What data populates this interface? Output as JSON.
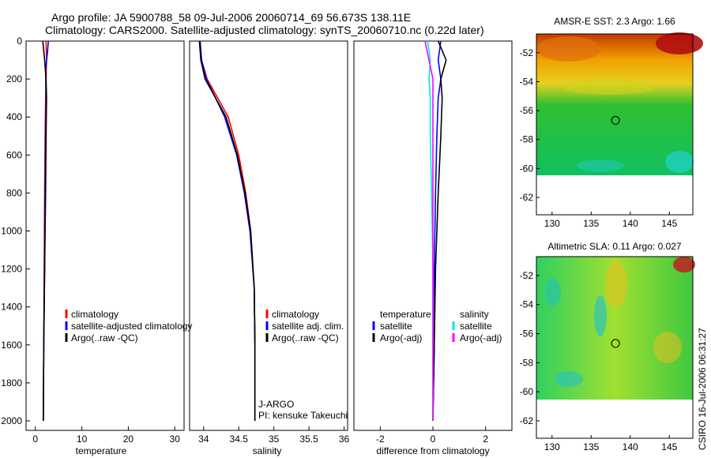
{
  "header": {
    "line1": "Argo profile: JA 5900788_58 09-Jul-2006 20060714_69 56.673S 138.11E",
    "line2": "Climatology: CARS2000. Satellite-adjusted climatology: synTS_20060710.nc (0.22d later)"
  },
  "colors": {
    "climatology": "#ff0000",
    "satellite": "#0000ff",
    "argo": "#000000",
    "argo_adj_sal": "#ff00ff",
    "sat_sal": "#00e5e5"
  },
  "chart_data": [
    {
      "type": "line",
      "id": "temperature",
      "xlabel": "temperature",
      "ylabel": "",
      "xlim": [
        -2,
        32
      ],
      "ylim": [
        2050,
        0
      ],
      "xticks": [
        0,
        10,
        20,
        30
      ],
      "yticks": [
        0,
        200,
        400,
        600,
        800,
        1000,
        1200,
        1400,
        1600,
        1800,
        2000
      ],
      "legend": {
        "position": "middle-right",
        "entries": [
          "climatology",
          "satellite-adjusted climatology",
          "Argo(..raw -QC)"
        ]
      },
      "series": [
        {
          "name": "climatology",
          "color": "red",
          "x": [
            2.3,
            2.4,
            2.3,
            2.2,
            2.1,
            2.0,
            1.9,
            1.8,
            1.7
          ],
          "y": [
            0,
            100,
            200,
            300,
            500,
            800,
            1200,
            1600,
            2000
          ]
        },
        {
          "name": "satellite-adjusted climatology",
          "color": "blue",
          "x": [
            2.8,
            2.6,
            2.2,
            2.3,
            2.2,
            2.1,
            2.0,
            1.8,
            1.7
          ],
          "y": [
            0,
            60,
            150,
            300,
            500,
            800,
            1200,
            1600,
            2000
          ]
        },
        {
          "name": "Argo(..raw -QC)",
          "color": "black",
          "x": [
            1.6,
            2.0,
            2.3,
            2.4,
            2.3,
            2.2,
            2.0,
            1.8,
            1.7
          ],
          "y": [
            0,
            100,
            200,
            300,
            500,
            800,
            1200,
            1600,
            2000
          ]
        }
      ]
    },
    {
      "type": "line",
      "id": "salinity",
      "xlabel": "salinity",
      "xlim": [
        33.8,
        36.05
      ],
      "ylim": [
        2050,
        0
      ],
      "xticks": [
        34,
        34.5,
        35,
        35.5,
        36
      ],
      "legend": {
        "position": "middle-right",
        "entries": [
          "climatology",
          "satellite adj. clim.",
          "Argo(..raw -QC)"
        ]
      },
      "annotations": [
        "J-ARGO",
        "PI: kensuke Takeuchi"
      ],
      "series": [
        {
          "name": "climatology",
          "color": "red",
          "x": [
            33.95,
            33.97,
            34.05,
            34.2,
            34.35,
            34.5,
            34.6,
            34.67,
            34.72,
            34.73,
            34.73
          ],
          "y": [
            0,
            100,
            200,
            300,
            400,
            600,
            800,
            1000,
            1300,
            1600,
            2000
          ]
        },
        {
          "name": "satellite adj. clim.",
          "color": "blue",
          "x": [
            33.95,
            33.97,
            34.04,
            34.17,
            34.3,
            34.47,
            34.58,
            34.66,
            34.72,
            34.73,
            34.73
          ],
          "y": [
            0,
            100,
            200,
            300,
            400,
            600,
            800,
            1000,
            1300,
            1600,
            2000
          ]
        },
        {
          "name": "Argo(..raw -QC)",
          "color": "black",
          "x": [
            33.94,
            33.96,
            34.02,
            34.17,
            34.32,
            34.48,
            34.59,
            34.67,
            34.72,
            34.73,
            34.73
          ],
          "y": [
            0,
            100,
            200,
            300,
            400,
            600,
            800,
            1000,
            1300,
            1600,
            2000
          ]
        }
      ]
    },
    {
      "type": "line",
      "id": "difference",
      "xlabel": "difference from climatology",
      "xlim": [
        -3,
        3
      ],
      "ylim": [
        2050,
        0
      ],
      "xticks": [
        -2,
        0,
        2
      ],
      "legend": {
        "position": "middle",
        "entries": [
          "temperature",
          "satellite",
          "Argo(-adj)",
          "salinity",
          "satellite",
          "Argo(-adj)"
        ]
      },
      "series": [
        {
          "name": "temperature satellite",
          "color": "blue",
          "x": [
            0.3,
            0.2,
            0.3,
            0.2,
            0.15,
            0.1,
            0.05,
            0.05,
            0.0
          ],
          "y": [
            0,
            100,
            200,
            300,
            500,
            800,
            1200,
            1600,
            2000
          ]
        },
        {
          "name": "temperature Argo(-adj)",
          "color": "black",
          "x": [
            0.2,
            0.5,
            0.3,
            0.35,
            0.3,
            0.2,
            0.1,
            0.05,
            0.0
          ],
          "y": [
            0,
            100,
            200,
            300,
            500,
            800,
            1200,
            1600,
            2000
          ]
        },
        {
          "name": "salinity satellite",
          "color": "cyan",
          "x": [
            -0.2,
            -0.1,
            -0.15,
            -0.1,
            -0.1,
            -0.05,
            0.0,
            0.0,
            0.0
          ],
          "y": [
            0,
            100,
            200,
            300,
            500,
            800,
            1200,
            1600,
            2000
          ]
        },
        {
          "name": "salinity Argo(-adj)",
          "color": "magenta",
          "x": [
            -0.3,
            -0.15,
            0.0,
            0.0,
            0.0,
            0.0,
            0.0,
            0.0,
            0.0
          ],
          "y": [
            0,
            100,
            200,
            300,
            500,
            800,
            1200,
            1600,
            2000
          ]
        }
      ]
    },
    {
      "type": "heatmap",
      "id": "sst_map",
      "title": "AMSR-E SST: 2.3 Argo: 1.66",
      "xlim": [
        128,
        148
      ],
      "ylim": [
        -63.2,
        -50.7
      ],
      "xticks": [
        130,
        135,
        140,
        145
      ],
      "yticks": [
        -52,
        -54,
        -56,
        -58,
        -60,
        -62
      ],
      "marker": {
        "lon": 138.11,
        "lat": -56.673
      }
    },
    {
      "type": "heatmap",
      "id": "sla_map",
      "title": "Altimetric SLA: 0.11 Argo: 0.027",
      "xlim": [
        128,
        148
      ],
      "ylim": [
        -63.2,
        -50.7
      ],
      "xticks": [
        130,
        135,
        140,
        145
      ],
      "yticks": [
        -52,
        -54,
        -56,
        -58,
        -60,
        -62
      ],
      "marker": {
        "lon": 138.11,
        "lat": -56.673
      }
    }
  ],
  "footer": {
    "credit": "CSIRO 16-Jul-2006 06:31:27"
  }
}
